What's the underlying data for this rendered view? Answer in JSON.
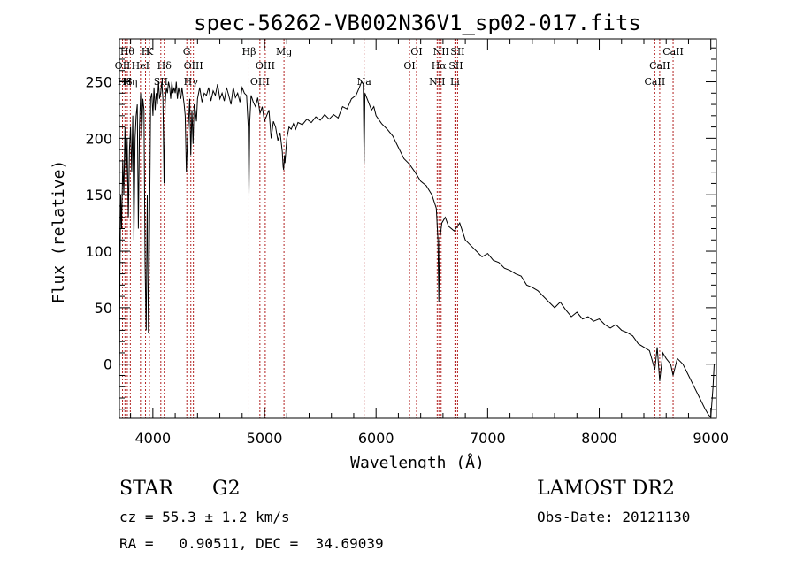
{
  "chart_data": {
    "type": "line",
    "title": "spec-56262-VB002N36V1_sp02-017.fits",
    "xlabel": "Wavelength (Å)",
    "ylabel": "Flux (relative)",
    "xlim": [
      3700,
      9050
    ],
    "ylim": [
      -48,
      288
    ],
    "xticks": [
      4000,
      5000,
      6000,
      7000,
      8000,
      9000
    ],
    "yticks": [
      0,
      50,
      100,
      150,
      200,
      250
    ],
    "grid": false,
    "series": [
      {
        "points": [
          [
            3700,
            -30
          ],
          [
            3705,
            80
          ],
          [
            3712,
            150
          ],
          [
            3720,
            120
          ],
          [
            3730,
            180
          ],
          [
            3740,
            150
          ],
          [
            3750,
            210
          ],
          [
            3760,
            160
          ],
          [
            3770,
            200
          ],
          [
            3780,
            130
          ],
          [
            3790,
            190
          ],
          [
            3800,
            210
          ],
          [
            3810,
            170
          ],
          [
            3820,
            220
          ],
          [
            3830,
            110
          ],
          [
            3840,
            200
          ],
          [
            3850,
            220
          ],
          [
            3860,
            230
          ],
          [
            3870,
            120
          ],
          [
            3880,
            210
          ],
          [
            3890,
            240
          ],
          [
            3900,
            200
          ],
          [
            3910,
            235
          ],
          [
            3920,
            225
          ],
          [
            3930,
            90
          ],
          [
            3940,
            30
          ],
          [
            3950,
            150
          ],
          [
            3960,
            28
          ],
          [
            3970,
            120
          ],
          [
            3980,
            235
          ],
          [
            3990,
            240
          ],
          [
            4000,
            220
          ],
          [
            4010,
            245
          ],
          [
            4020,
            225
          ],
          [
            4030,
            240
          ],
          [
            4040,
            230
          ],
          [
            4050,
            250
          ],
          [
            4060,
            235
          ],
          [
            4070,
            240
          ],
          [
            4080,
            250
          ],
          [
            4090,
            235
          ],
          [
            4100,
            160
          ],
          [
            4110,
            230
          ],
          [
            4120,
            245
          ],
          [
            4130,
            240
          ],
          [
            4140,
            250
          ],
          [
            4150,
            245
          ],
          [
            4160,
            235
          ],
          [
            4170,
            250
          ],
          [
            4180,
            240
          ],
          [
            4190,
            245
          ],
          [
            4200,
            240
          ],
          [
            4210,
            250
          ],
          [
            4220,
            235
          ],
          [
            4230,
            245
          ],
          [
            4240,
            240
          ],
          [
            4250,
            235
          ],
          [
            4260,
            245
          ],
          [
            4270,
            238
          ],
          [
            4280,
            230
          ],
          [
            4290,
            220
          ],
          [
            4300,
            170
          ],
          [
            4310,
            200
          ],
          [
            4320,
            215
          ],
          [
            4330,
            235
          ],
          [
            4340,
            185
          ],
          [
            4350,
            225
          ],
          [
            4360,
            195
          ],
          [
            4370,
            230
          ],
          [
            4380,
            225
          ],
          [
            4390,
            215
          ],
          [
            4400,
            235
          ],
          [
            4420,
            245
          ],
          [
            4440,
            232
          ],
          [
            4460,
            240
          ],
          [
            4480,
            238
          ],
          [
            4500,
            245
          ],
          [
            4520,
            233
          ],
          [
            4540,
            242
          ],
          [
            4560,
            238
          ],
          [
            4580,
            248
          ],
          [
            4600,
            235
          ],
          [
            4620,
            240
          ],
          [
            4640,
            233
          ],
          [
            4660,
            245
          ],
          [
            4680,
            238
          ],
          [
            4700,
            230
          ],
          [
            4720,
            245
          ],
          [
            4740,
            236
          ],
          [
            4760,
            240
          ],
          [
            4780,
            232
          ],
          [
            4800,
            245
          ],
          [
            4820,
            240
          ],
          [
            4840,
            238
          ],
          [
            4855,
            210
          ],
          [
            4861,
            150
          ],
          [
            4868,
            215
          ],
          [
            4880,
            238
          ],
          [
            4900,
            232
          ],
          [
            4920,
            228
          ],
          [
            4940,
            236
          ],
          [
            4960,
            222
          ],
          [
            4980,
            228
          ],
          [
            5000,
            215
          ],
          [
            5020,
            220
          ],
          [
            5040,
            225
          ],
          [
            5060,
            200
          ],
          [
            5080,
            215
          ],
          [
            5100,
            210
          ],
          [
            5120,
            198
          ],
          [
            5140,
            205
          ],
          [
            5160,
            188
          ],
          [
            5167,
            175
          ],
          [
            5172,
            172
          ],
          [
            5180,
            185
          ],
          [
            5184,
            178
          ],
          [
            5200,
            200
          ],
          [
            5220,
            210
          ],
          [
            5240,
            208
          ],
          [
            5260,
            213
          ],
          [
            5280,
            208
          ],
          [
            5300,
            214
          ],
          [
            5340,
            212
          ],
          [
            5380,
            217
          ],
          [
            5420,
            214
          ],
          [
            5460,
            219
          ],
          [
            5500,
            216
          ],
          [
            5540,
            221
          ],
          [
            5580,
            217
          ],
          [
            5620,
            221
          ],
          [
            5660,
            218
          ],
          [
            5700,
            228
          ],
          [
            5740,
            226
          ],
          [
            5780,
            235
          ],
          [
            5820,
            238
          ],
          [
            5850,
            245
          ],
          [
            5870,
            250
          ],
          [
            5885,
            248
          ],
          [
            5893,
            178
          ],
          [
            5900,
            240
          ],
          [
            5920,
            235
          ],
          [
            5940,
            230
          ],
          [
            5960,
            225
          ],
          [
            5980,
            228
          ],
          [
            6000,
            220
          ],
          [
            6050,
            213
          ],
          [
            6100,
            208
          ],
          [
            6150,
            202
          ],
          [
            6200,
            192
          ],
          [
            6250,
            182
          ],
          [
            6300,
            177
          ],
          [
            6350,
            170
          ],
          [
            6400,
            162
          ],
          [
            6450,
            158
          ],
          [
            6500,
            150
          ],
          [
            6540,
            138
          ],
          [
            6555,
            110
          ],
          [
            6563,
            55
          ],
          [
            6570,
            110
          ],
          [
            6590,
            125
          ],
          [
            6620,
            130
          ],
          [
            6650,
            122
          ],
          [
            6700,
            118
          ],
          [
            6750,
            125
          ],
          [
            6800,
            110
          ],
          [
            6850,
            105
          ],
          [
            6900,
            100
          ],
          [
            6950,
            95
          ],
          [
            7000,
            98
          ],
          [
            7050,
            92
          ],
          [
            7100,
            90
          ],
          [
            7150,
            85
          ],
          [
            7200,
            83
          ],
          [
            7250,
            80
          ],
          [
            7300,
            78
          ],
          [
            7350,
            70
          ],
          [
            7400,
            68
          ],
          [
            7450,
            65
          ],
          [
            7500,
            60
          ],
          [
            7550,
            55
          ],
          [
            7600,
            50
          ],
          [
            7650,
            55
          ],
          [
            7700,
            48
          ],
          [
            7750,
            42
          ],
          [
            7800,
            46
          ],
          [
            7850,
            40
          ],
          [
            7900,
            42
          ],
          [
            7950,
            38
          ],
          [
            8000,
            40
          ],
          [
            8050,
            35
          ],
          [
            8100,
            32
          ],
          [
            8150,
            35
          ],
          [
            8200,
            30
          ],
          [
            8250,
            28
          ],
          [
            8300,
            25
          ],
          [
            8350,
            18
          ],
          [
            8400,
            15
          ],
          [
            8450,
            12
          ],
          [
            8498,
            -5
          ],
          [
            8520,
            15
          ],
          [
            8542,
            -15
          ],
          [
            8570,
            10
          ],
          [
            8600,
            5
          ],
          [
            8640,
            0
          ],
          [
            8662,
            -10
          ],
          [
            8700,
            5
          ],
          [
            8750,
            0
          ],
          [
            8800,
            -10
          ],
          [
            8850,
            -20
          ],
          [
            8900,
            -30
          ],
          [
            8950,
            -40
          ],
          [
            8980,
            -45
          ],
          [
            9000,
            -47
          ],
          [
            9020,
            -20
          ],
          [
            9030,
            0
          ]
        ]
      }
    ],
    "lines": [
      {
        "x": 3728,
        "label": "OII",
        "row": 1
      },
      {
        "x": 3750,
        "label": "H8",
        "row": 2
      },
      {
        "x": 3771,
        "label": "Hθ",
        "row": 0
      },
      {
        "x": 3798,
        "label": "Hη",
        "row": 2
      },
      {
        "x": 3889,
        "label": "HeI",
        "row": 1
      },
      {
        "x": 3934,
        "label": "H",
        "row": 0
      },
      {
        "x": 3969,
        "label": "K",
        "row": 0
      },
      {
        "x": 4071,
        "label": "SII",
        "row": 2
      },
      {
        "x": 4102,
        "label": "Hδ",
        "row": 1
      },
      {
        "x": 4304,
        "label": "G",
        "row": 0
      },
      {
        "x": 4340,
        "label": "Hγ",
        "row": 2
      },
      {
        "x": 4363,
        "label": "OIII",
        "row": 1
      },
      {
        "x": 4861,
        "label": "Hβ",
        "row": 0
      },
      {
        "x": 4959,
        "label": "OIII",
        "row": 2
      },
      {
        "x": 5007,
        "label": "OIII",
        "row": 1
      },
      {
        "x": 5175,
        "label": "Mg",
        "row": 0
      },
      {
        "x": 5893,
        "label": "Na",
        "row": 2
      },
      {
        "x": 6300,
        "label": "OI",
        "row": 1
      },
      {
        "x": 6363,
        "label": "OI",
        "row": 0
      },
      {
        "x": 6548,
        "label": "NII",
        "row": 2
      },
      {
        "x": 6563,
        "label": "Hα",
        "row": 1
      },
      {
        "x": 6583,
        "label": "NII",
        "row": 0
      },
      {
        "x": 6707,
        "label": "Li",
        "row": 2
      },
      {
        "x": 6716,
        "label": "SII",
        "row": 1
      },
      {
        "x": 6731,
        "label": "SII",
        "row": 0
      },
      {
        "x": 8498,
        "label": "CaII",
        "row": 2
      },
      {
        "x": 8542,
        "label": "CaII",
        "row": 1
      },
      {
        "x": 8662,
        "label": "CaII",
        "row": 0
      }
    ]
  },
  "info": {
    "class_label": "STAR",
    "subclass": "G2",
    "cz_line": "cz = 55.3 ± 1.2 km/s",
    "coords_line": "RA =   0.90511, DEC =  34.69039",
    "survey": "LAMOST DR2",
    "obs_date": "Obs-Date: 20121130"
  }
}
